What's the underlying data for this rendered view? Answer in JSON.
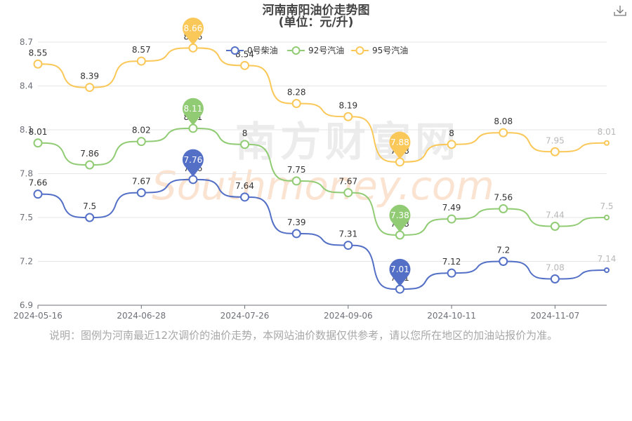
{
  "chart": {
    "title": "河南南阳油价走势图",
    "subtitle": "(单位：元/升)",
    "download_icon": "download-icon",
    "note": "说明：图例为河南最近12次调价的油价走势，本网站油价数据仅供参考，请以您所在地区的加油站报价为准。",
    "watermark": {
      "cn": "南方财富网",
      "en": "Southmoney.com"
    }
  },
  "chart_data": {
    "type": "line",
    "title": "河南南阳油价走势图",
    "subtitle": "(单位：元/升)",
    "xlabel": "",
    "ylabel": "",
    "ylim": [
      6.9,
      8.7
    ],
    "yticks": [
      "6.9",
      "7.2",
      "7.5",
      "7.8",
      "8.1",
      "8.4",
      "8.7"
    ],
    "categories": [
      "2024-05-16",
      "",
      "2024-06-28",
      "",
      "2024-07-26",
      "",
      "2024-09-06",
      "",
      "2024-10-11",
      "",
      "2024-11-07",
      ""
    ],
    "x_tick_labels": [
      "2024-05-16",
      "2024-06-28",
      "2024-07-26",
      "2024-09-06",
      "2024-10-11",
      "2024-11-07"
    ],
    "legend_position": "top-right",
    "grid": true,
    "series": [
      {
        "name": "0号柴油",
        "color": "#5470c6",
        "values": [
          7.66,
          7.5,
          7.67,
          7.76,
          7.64,
          7.39,
          7.31,
          7.01,
          7.12,
          7.2,
          7.08,
          7.14
        ],
        "labels": [
          "7.66",
          "7.5",
          "7.67",
          "7.76",
          "7.64",
          "7.39",
          "7.31",
          "7.01",
          "7.12",
          "7.2",
          "7.08",
          "7.14"
        ],
        "max_label": "7.76",
        "min_label": "7.01",
        "max_index": 3,
        "min_index": 7
      },
      {
        "name": "92号汽油",
        "color": "#91cc75",
        "values": [
          8.01,
          7.86,
          8.02,
          8.11,
          8.0,
          7.75,
          7.67,
          7.38,
          7.49,
          7.56,
          7.44,
          7.5
        ],
        "labels": [
          "8.01",
          "7.86",
          "8.02",
          "8.11",
          "8",
          "7.75",
          "7.67",
          "7.38",
          "7.49",
          "7.56",
          "7.44",
          "7.5"
        ],
        "max_label": "8.11",
        "min_label": "7.38",
        "max_index": 3,
        "min_index": 7
      },
      {
        "name": "95号汽油",
        "color": "#fac858",
        "values": [
          8.55,
          8.39,
          8.57,
          8.66,
          8.54,
          8.28,
          8.19,
          7.88,
          8.0,
          8.08,
          7.95,
          8.01
        ],
        "labels": [
          "8.55",
          "8.39",
          "8.57",
          "8.66",
          "8.54",
          "8.28",
          "8.19",
          "7.88",
          "8",
          "8.08",
          "7.95",
          "8.01"
        ],
        "max_label": "8.66",
        "min_label": "7.88",
        "max_index": 3,
        "min_index": 7
      }
    ]
  }
}
